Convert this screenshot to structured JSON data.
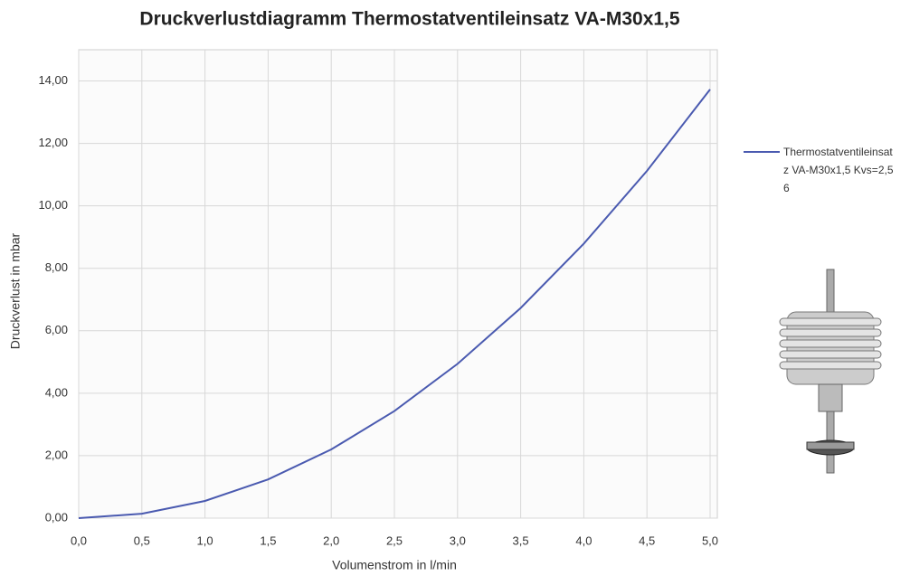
{
  "chart_data": {
    "type": "line",
    "title": "Druckverlustdiagramm Thermostatventileinsatz VA-M30x1,5",
    "xlabel": "Volumenstrom in l/min",
    "ylabel": "Druckverlust in mbar",
    "x": [
      0,
      0.5,
      1,
      1.5,
      2,
      2.5,
      3,
      3.5,
      4,
      4.5,
      5
    ],
    "series": [
      {
        "name": "Thermostatventileinsatz VA-M30x1,5 Kvs=2,56",
        "color": "#4a5ab0",
        "values": [
          0,
          0.14,
          0.55,
          1.24,
          2.2,
          3.43,
          4.94,
          6.73,
          8.79,
          11.12,
          13.73
        ]
      }
    ],
    "xlim": [
      0,
      5
    ],
    "ylim": [
      0,
      15
    ],
    "xticks": [
      {
        "value": 0,
        "label": "0,0"
      },
      {
        "value": 0.5,
        "label": "0,5"
      },
      {
        "value": 1,
        "label": "1,0"
      },
      {
        "value": 1.5,
        "label": "1,5"
      },
      {
        "value": 2,
        "label": "2,0"
      },
      {
        "value": 2.5,
        "label": "2,5"
      },
      {
        "value": 3,
        "label": "3,0"
      },
      {
        "value": 3.5,
        "label": "3,5"
      },
      {
        "value": 4,
        "label": "4,0"
      },
      {
        "value": 4.5,
        "label": "4,5"
      },
      {
        "value": 5,
        "label": "5,0"
      }
    ],
    "yticks": [
      {
        "value": 0,
        "label": "0,00"
      },
      {
        "value": 2,
        "label": "2,00"
      },
      {
        "value": 4,
        "label": "4,00"
      },
      {
        "value": 6,
        "label": "6,00"
      },
      {
        "value": 8,
        "label": "8,00"
      },
      {
        "value": 10,
        "label": "10,00"
      },
      {
        "value": 12,
        "label": "12,00"
      },
      {
        "value": 14,
        "label": "14,00"
      }
    ],
    "grid": true
  }
}
